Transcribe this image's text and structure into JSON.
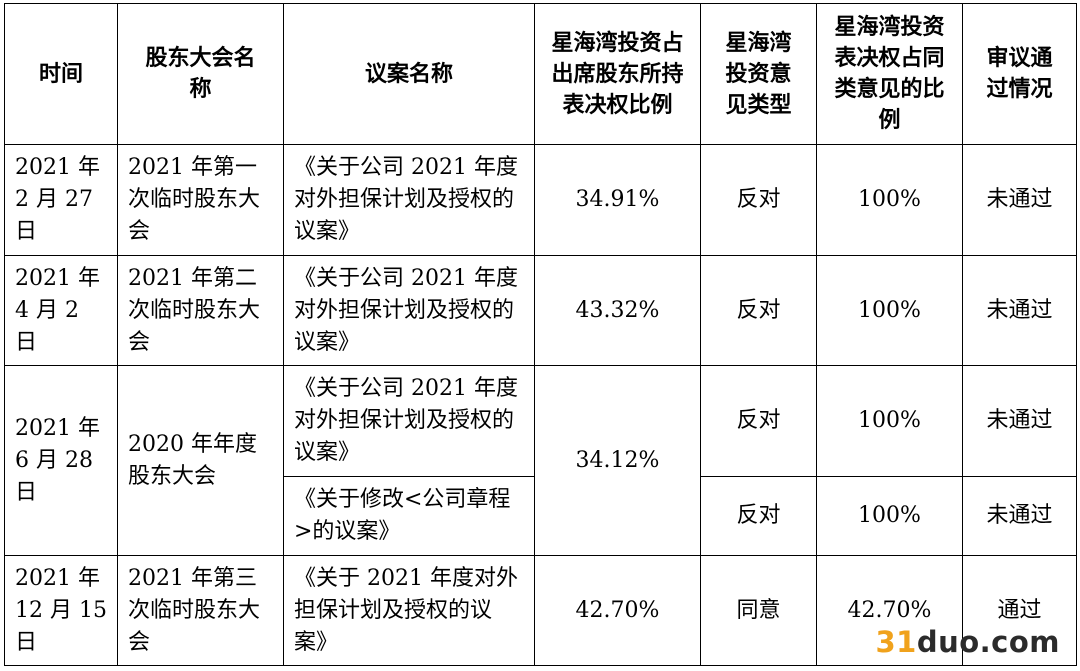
{
  "headers": [
    "时间",
    "股东大会名称",
    "议案名称",
    "星海湾投资占出席股东所持表决权比例",
    "星海湾投资意见类型",
    "星海湾投资表决权占同类意见的比例",
    "审议通过情况"
  ],
  "rows": [
    {
      "time": "2021 年 2 月 27 日",
      "meeting": "2021 年第一次临时股东大会",
      "proposal": "《关于公司 2021 年度对外担保计划及授权的议案》",
      "ratio": "34.91%",
      "opinion": "反对",
      "share": "100%",
      "result": "未通过"
    },
    {
      "time": "2021 年 4 月 2 日",
      "meeting": "2021 年第二次临时股东大会",
      "proposal": "《关于公司 2021 年度对外担保计划及授权的议案》",
      "ratio": "43.32%",
      "opinion": "反对",
      "share": "100%",
      "result": "未通过"
    },
    {
      "time": "2021 年 6 月 28 日",
      "meeting": "2020 年年度股东大会",
      "ratio": "34.12%",
      "proposals": [
        {
          "proposal": "《关于公司 2021 年度对外担保计划及授权的议案》",
          "opinion": "反对",
          "share": "100%",
          "result": "未通过"
        },
        {
          "proposal": "《关于修改<公司章程>的议案》",
          "opinion": "反对",
          "share": "100%",
          "result": "未通过"
        }
      ]
    },
    {
      "time": "2021 年 12 月 15 日",
      "meeting": "2021 年第三次临时股东大会",
      "proposal": "《关于 2021 年度对外担保计划及授权的议案》",
      "ratio": "42.70%",
      "opinion": "同意",
      "share": "42.70%",
      "result": "通过"
    }
  ],
  "watermark": {
    "part1": "31",
    "part2": "duo",
    "part3": ".com"
  }
}
